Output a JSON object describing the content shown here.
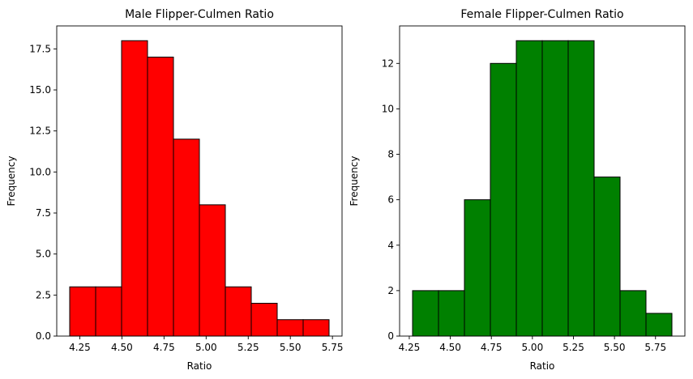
{
  "chart_data": [
    {
      "type": "bar",
      "title": "Male Flipper-Culmen Ratio",
      "xlabel": "Ratio",
      "ylabel": "Frequency",
      "color": "#ff0000",
      "edge_color": "#000000",
      "bins": [
        {
          "x0": 4.19,
          "x1": 4.344,
          "value": 3
        },
        {
          "x0": 4.344,
          "x1": 4.498,
          "value": 3
        },
        {
          "x0": 4.498,
          "x1": 4.652,
          "value": 18
        },
        {
          "x0": 4.652,
          "x1": 4.806,
          "value": 17
        },
        {
          "x0": 4.806,
          "x1": 4.96,
          "value": 12
        },
        {
          "x0": 4.96,
          "x1": 5.114,
          "value": 8
        },
        {
          "x0": 5.114,
          "x1": 5.268,
          "value": 3
        },
        {
          "x0": 5.268,
          "x1": 5.422,
          "value": 2
        },
        {
          "x0": 5.422,
          "x1": 5.576,
          "value": 1
        },
        {
          "x0": 5.576,
          "x1": 5.73,
          "value": 1
        }
      ],
      "xlim": [
        4.113,
        5.807
      ],
      "ylim": [
        0,
        18.9
      ],
      "xticks": [
        "4.25",
        "4.50",
        "4.75",
        "5.00",
        "5.25",
        "5.50",
        "5.75"
      ],
      "yticks": [
        "0.0",
        "2.5",
        "5.0",
        "7.5",
        "10.0",
        "12.5",
        "15.0",
        "17.5"
      ]
    },
    {
      "type": "bar",
      "title": "Female Flipper-Culmen Ratio",
      "xlabel": "Ratio",
      "ylabel": "Frequency",
      "color": "#008000",
      "edge_color": "#000000",
      "bins": [
        {
          "x0": 4.27,
          "x1": 4.428,
          "value": 2
        },
        {
          "x0": 4.428,
          "x1": 4.586,
          "value": 2
        },
        {
          "x0": 4.586,
          "x1": 4.744,
          "value": 6
        },
        {
          "x0": 4.744,
          "x1": 4.902,
          "value": 12
        },
        {
          "x0": 4.902,
          "x1": 5.06,
          "value": 13
        },
        {
          "x0": 5.06,
          "x1": 5.218,
          "value": 13
        },
        {
          "x0": 5.218,
          "x1": 5.376,
          "value": 13
        },
        {
          "x0": 5.376,
          "x1": 5.534,
          "value": 7
        },
        {
          "x0": 5.534,
          "x1": 5.692,
          "value": 2
        },
        {
          "x0": 5.692,
          "x1": 5.85,
          "value": 1
        }
      ],
      "xlim": [
        4.191,
        5.929
      ],
      "ylim": [
        0,
        13.65
      ],
      "xticks": [
        "4.25",
        "4.50",
        "4.75",
        "5.00",
        "5.25",
        "5.50",
        "5.75"
      ],
      "yticks": [
        "0",
        "2",
        "4",
        "6",
        "8",
        "10",
        "12"
      ]
    }
  ]
}
